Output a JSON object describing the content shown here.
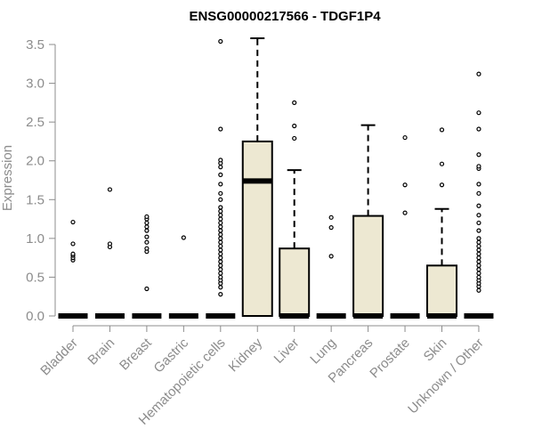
{
  "chart_data": {
    "type": "boxplot",
    "title": "ENSG00000217566 - TDGF1P4",
    "ylabel": "Expression",
    "xlabel": "",
    "ylim": [
      0,
      3.5
    ],
    "y_ticks": [
      "0.0",
      "0.5",
      "1.0",
      "1.5",
      "2.0",
      "2.5",
      "3.0",
      "3.5"
    ],
    "categories": [
      "Bladder",
      "Brain",
      "Breast",
      "Gastric",
      "Hematopoietic cells",
      "Kidney",
      "Liver",
      "Lung",
      "Pancreas",
      "Prostate",
      "Skin",
      "Unknown / Other"
    ],
    "box_color": "#ede8d2",
    "boxes": [
      {
        "category": "Bladder",
        "q1": 0,
        "median": 0,
        "q3": 0,
        "whisker_low": 0,
        "whisker_high": 0,
        "outliers": [
          0.72,
          0.75,
          0.78,
          0.8,
          0.93,
          1.21
        ]
      },
      {
        "category": "Brain",
        "q1": 0,
        "median": 0,
        "q3": 0,
        "whisker_low": 0,
        "whisker_high": 0,
        "outliers": [
          0.89,
          0.93,
          1.63
        ]
      },
      {
        "category": "Breast",
        "q1": 0,
        "median": 0,
        "q3": 0,
        "whisker_low": 0,
        "whisker_high": 0,
        "outliers": [
          0.35,
          0.83,
          0.87,
          0.95,
          1.02,
          1.1,
          1.15,
          1.2,
          1.25,
          1.28
        ]
      },
      {
        "category": "Gastric",
        "q1": 0,
        "median": 0,
        "q3": 0,
        "whisker_low": 0,
        "whisker_high": 0,
        "outliers": [
          1.01
        ]
      },
      {
        "category": "Hematopoietic cells",
        "q1": 0,
        "median": 0,
        "q3": 0,
        "whisker_low": 0,
        "whisker_high": 0,
        "outliers": [
          0.28,
          0.37,
          0.42,
          0.46,
          0.5,
          0.55,
          0.6,
          0.65,
          0.7,
          0.75,
          0.8,
          0.85,
          0.9,
          0.95,
          1.0,
          1.05,
          1.1,
          1.15,
          1.2,
          1.25,
          1.3,
          1.35,
          1.4,
          1.5,
          1.58,
          1.7,
          1.82,
          1.92,
          1.97,
          2.01,
          2.41,
          3.54
        ]
      },
      {
        "category": "Kidney",
        "q1": 0,
        "median": 1.74,
        "q3": 2.25,
        "whisker_low": 0,
        "whisker_high": 3.58,
        "outliers": []
      },
      {
        "category": "Liver",
        "q1": 0,
        "median": 0,
        "q3": 0.87,
        "whisker_low": 0,
        "whisker_high": 1.88,
        "outliers": [
          2.29,
          2.45,
          2.75
        ]
      },
      {
        "category": "Lung",
        "q1": 0,
        "median": 0,
        "q3": 0,
        "whisker_low": 0,
        "whisker_high": 0,
        "outliers": [
          0.77,
          1.14,
          1.27
        ]
      },
      {
        "category": "Pancreas",
        "q1": 0,
        "median": 0,
        "q3": 1.29,
        "whisker_low": 0,
        "whisker_high": 2.46,
        "outliers": []
      },
      {
        "category": "Prostate",
        "q1": 0,
        "median": 0,
        "q3": 0,
        "whisker_low": 0,
        "whisker_high": 0,
        "outliers": [
          1.33,
          1.69,
          2.3
        ]
      },
      {
        "category": "Skin",
        "q1": 0,
        "median": 0,
        "q3": 0.65,
        "whisker_low": 0,
        "whisker_high": 1.38,
        "outliers": [
          1.69,
          1.96,
          2.4
        ]
      },
      {
        "category": "Unknown / Other",
        "q1": 0,
        "median": 0,
        "q3": 0,
        "whisker_low": 0,
        "whisker_high": 0,
        "outliers": [
          0.33,
          0.38,
          0.42,
          0.46,
          0.5,
          0.55,
          0.6,
          0.65,
          0.7,
          0.75,
          0.8,
          0.85,
          0.9,
          0.95,
          1.0,
          1.1,
          1.2,
          1.3,
          1.42,
          1.58,
          1.7,
          1.9,
          1.93,
          2.08,
          2.41,
          2.62,
          3.12
        ]
      }
    ]
  }
}
